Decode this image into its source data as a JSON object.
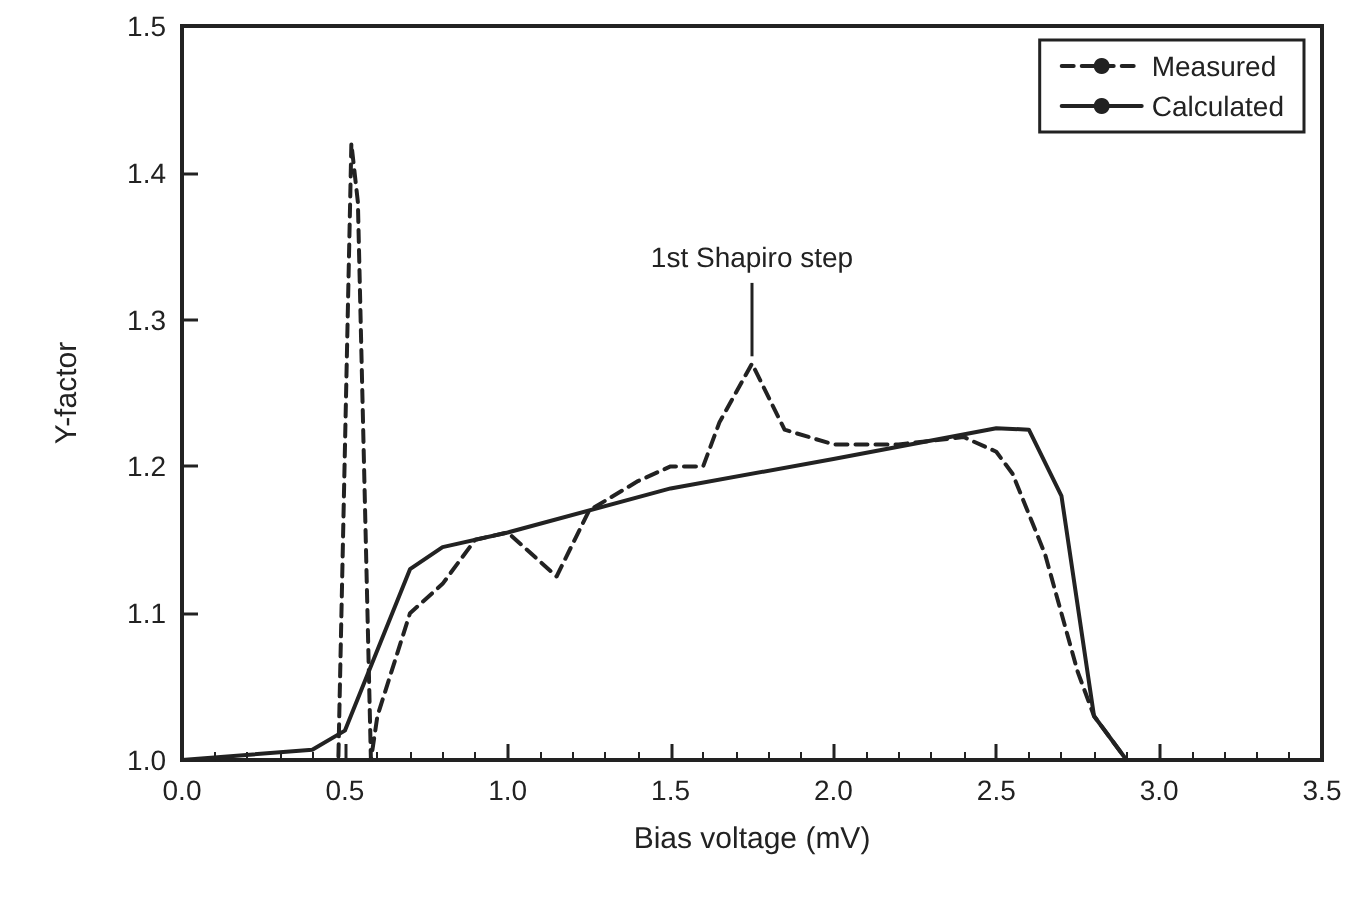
{
  "chart_data": {
    "type": "line",
    "xlabel": "Bias voltage (mV)",
    "ylabel": "Y-factor",
    "xlim": [
      0,
      3.5
    ],
    "xticks": [
      {
        "value": 0,
        "label": "0.0"
      },
      0.5,
      {
        "value": 1,
        "label": "1.0"
      },
      1.5,
      {
        "value": 2,
        "label": "2.0"
      },
      2.5,
      {
        "value": 3,
        "label": "3.0"
      },
      3.5
    ],
    "ylim": [
      1,
      1.5
    ],
    "yticks": [
      {
        "value": 1,
        "label": "1.0"
      },
      1.1,
      1.2,
      1.3,
      1.4,
      1.5
    ],
    "grid": false,
    "legend": "top right",
    "marker": "none",
    "annotations": [
      {
        "text": "1st Shapiro step",
        "x": 1.75,
        "y": 1.27
      }
    ],
    "series": [
      {
        "name": "Measured",
        "color": "#222222",
        "line_style": "dashed",
        "x": [
          0,
          0.4,
          0.48,
          0.52,
          0.54,
          0.58,
          0.6,
          0.7,
          0.8,
          0.9,
          1.0,
          1.15,
          1.25,
          1.4,
          1.5,
          1.6,
          1.65,
          1.75,
          1.85,
          2.0,
          2.2,
          2.4,
          2.5,
          2.55,
          2.65,
          2.75,
          2.8,
          2.9,
          3.5
        ],
        "values": [
          1.0,
          1.0,
          1.0,
          1.42,
          1.38,
          1.0,
          1.03,
          1.1,
          1.12,
          1.15,
          1.155,
          1.125,
          1.17,
          1.19,
          1.2,
          1.2,
          1.23,
          1.27,
          1.225,
          1.215,
          1.215,
          1.22,
          1.21,
          1.195,
          1.14,
          1.06,
          1.03,
          1.0,
          1.0
        ]
      },
      {
        "name": "Calculated",
        "color": "#222222",
        "line_style": "solid",
        "x": [
          0,
          0.4,
          0.5,
          0.7,
          0.8,
          1.0,
          1.5,
          2.0,
          2.5,
          2.6,
          2.7,
          2.8,
          2.9,
          3.5
        ],
        "values": [
          1.0,
          1.007,
          1.02,
          1.13,
          1.145,
          1.155,
          1.185,
          1.205,
          1.226,
          1.225,
          1.18,
          1.03,
          1.0,
          1.0
        ]
      }
    ]
  }
}
